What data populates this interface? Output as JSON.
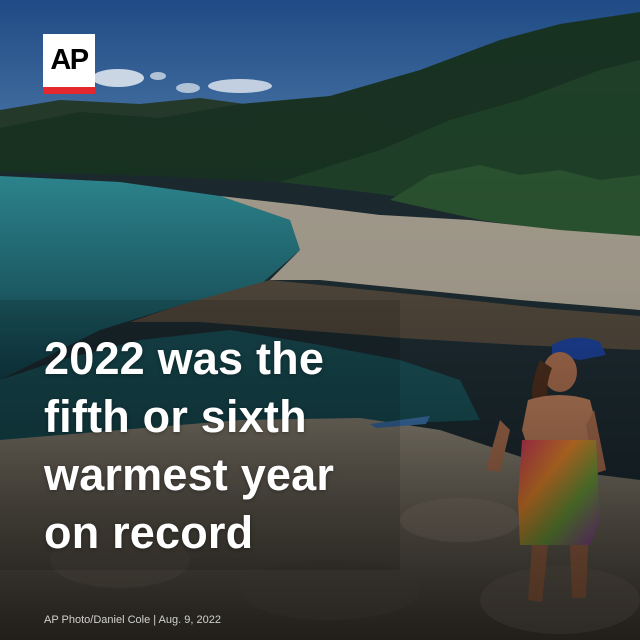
{
  "logo": {
    "text": "AP",
    "bar_color": "#e5272e"
  },
  "headline": {
    "lines": [
      "2022 was the",
      "fifth or sixth",
      "warmest year",
      "on record"
    ]
  },
  "credit": "AP Photo/Daniel Cole | Aug. 9, 2022",
  "colors": {
    "text": "#ffffff",
    "sky": "#2c5b8f",
    "water": "#1f6e75"
  }
}
